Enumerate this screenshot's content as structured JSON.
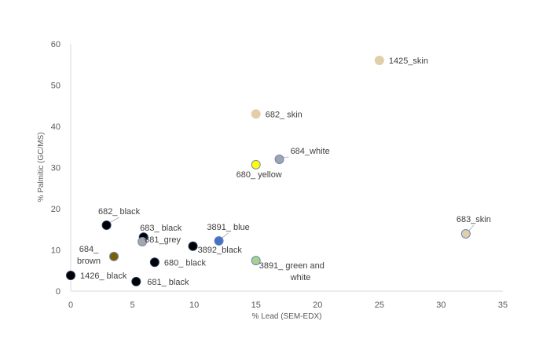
{
  "chart_data": {
    "type": "scatter",
    "title": "",
    "xlabel": "% Lead (SEM-EDX)",
    "ylabel": "% Palmitic (GC/MS)",
    "xlim": [
      0,
      35
    ],
    "ylim": [
      0,
      60
    ],
    "xticks": [
      0,
      5,
      10,
      15,
      20,
      25,
      30,
      35
    ],
    "yticks": [
      0,
      10,
      20,
      30,
      40,
      50,
      60
    ],
    "grid": false,
    "legend": "none",
    "points": [
      {
        "label": "1425_skin",
        "x": 25,
        "y": 56,
        "color": "#e2cfa9"
      },
      {
        "label": "682_ skin",
        "x": 15,
        "y": 43,
        "color": "#e2cfa9"
      },
      {
        "label": "684_white",
        "x": 16.9,
        "y": 32,
        "color": "#a0a4ad"
      },
      {
        "label": "680_ yellow",
        "x": 15,
        "y": 30.7,
        "color": "#ffff00"
      },
      {
        "label": "683_skin",
        "x": 32,
        "y": 13.9,
        "color": "#e2cfa9"
      },
      {
        "label": "3891_ blue",
        "x": 12,
        "y": 12.2,
        "color": "#4472c4"
      },
      {
        "label": "3891_ green and white",
        "x": 15,
        "y": 7.4,
        "color": "#a9d18e"
      },
      {
        "label": "3892_black",
        "x": 9.9,
        "y": 10.9,
        "color": "#000000"
      },
      {
        "label": "682_ black",
        "x": 2.9,
        "y": 16,
        "color": "#000000"
      },
      {
        "label": "683_ black",
        "x": 5.9,
        "y": 13.1,
        "color": "#000000"
      },
      {
        "label": "681_grey",
        "x": 5.8,
        "y": 12,
        "color": "#a6a6a6"
      },
      {
        "label": "684_ brown",
        "x": 3.5,
        "y": 8.4,
        "color": "#7f6000"
      },
      {
        "label": "680_ black",
        "x": 6.8,
        "y": 7,
        "color": "#000000"
      },
      {
        "label": "1426_ black",
        "x": 0,
        "y": 3.8,
        "color": "#000000"
      },
      {
        "label": "681_ black",
        "x": 5.3,
        "y": 2.3,
        "color": "#000000"
      }
    ]
  }
}
